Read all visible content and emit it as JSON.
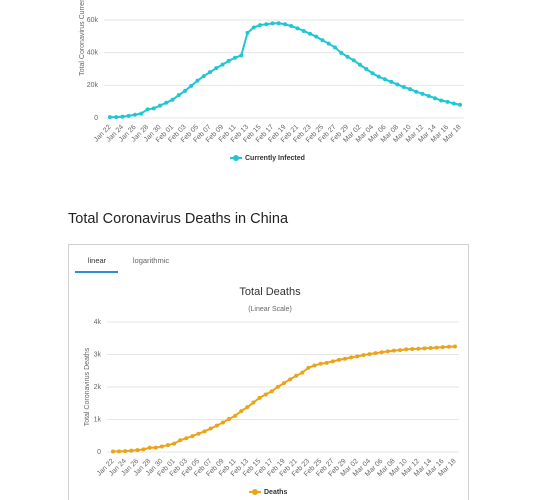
{
  "section_heading": "Total Coronavirus Deaths in China",
  "tabs": [
    "linear",
    "logarithmic"
  ],
  "chart_data": [
    {
      "type": "line",
      "y_label": "Total Coronavirus Currently Infected",
      "categories": [
        "Jan 22",
        null,
        "Jan 24",
        null,
        "Jan 26",
        null,
        "Jan 28",
        null,
        "Jan 30",
        null,
        "Feb 01",
        null,
        "Feb 03",
        null,
        "Feb 05",
        null,
        "Feb 07",
        null,
        "Feb 09",
        null,
        "Feb 11",
        null,
        "Feb 13",
        null,
        "Feb 15",
        null,
        "Feb 17",
        null,
        "Feb 19",
        null,
        "Feb 21",
        null,
        "Feb 23",
        null,
        "Feb 25",
        null,
        "Feb 27",
        null,
        "Feb 29",
        null,
        "Mar 02",
        null,
        "Mar 04",
        null,
        "Mar 06",
        null,
        "Mar 08",
        null,
        "Mar 10",
        null,
        "Mar 12",
        null,
        "Mar 14",
        null,
        "Mar 16",
        null,
        "Mar 18"
      ],
      "series": [
        {
          "name": "Currently Infected",
          "color": "#1fc7d4",
          "values": [
            510,
            570,
            850,
            1300,
            2000,
            2700,
            5300,
            5900,
            7600,
            9300,
            11200,
            14000,
            16600,
            19700,
            22900,
            25600,
            28100,
            30500,
            32700,
            35000,
            36900,
            38300,
            52100,
            55400,
            56900,
            57400,
            57900,
            58000,
            57400,
            56300,
            54900,
            53300,
            51600,
            49800,
            47600,
            45500,
            43200,
            39900,
            37500,
            35300,
            32600,
            30000,
            27400,
            25300,
            23700,
            22100,
            20500,
            19000,
            17700,
            16100,
            14800,
            13500,
            12100,
            10700,
            9900,
            8900,
            8100
          ]
        }
      ],
      "ylim": [
        0,
        60000
      ],
      "yticks": [
        0,
        {
          "value": 20000,
          "label": "20k"
        },
        {
          "value": 40000,
          "label": "40k"
        },
        {
          "value": 60000,
          "label": "60k"
        }
      ],
      "grid": true
    },
    {
      "type": "line",
      "title": "Total Deaths",
      "subtitle": "(Linear Scale)",
      "y_label": "Total Coronavirus Deaths",
      "categories": [
        "Jan 22",
        null,
        "Jan 24",
        null,
        "Jan 26",
        null,
        "Jan 28",
        null,
        "Jan 30",
        null,
        "Feb 01",
        null,
        "Feb 03",
        null,
        "Feb 05",
        null,
        "Feb 07",
        null,
        "Feb 09",
        null,
        "Feb 11",
        null,
        "Feb 13",
        null,
        "Feb 15",
        null,
        "Feb 17",
        null,
        "Feb 19",
        null,
        "Feb 21",
        null,
        "Feb 23",
        null,
        "Feb 25",
        null,
        "Feb 27",
        null,
        "Feb 29",
        null,
        "Mar 02",
        null,
        "Mar 04",
        null,
        "Mar 06",
        null,
        "Mar 08",
        null,
        "Mar 10",
        null,
        "Mar 12",
        null,
        "Mar 14",
        null,
        "Mar 16",
        null,
        "Mar 18"
      ],
      "series": [
        {
          "name": "Deaths",
          "color": "#eba418",
          "values": [
            17,
            18,
            26,
            42,
            56,
            82,
            131,
            133,
            171,
            213,
            259,
            361,
            425,
            490,
            562,
            636,
            722,
            811,
            908,
            1016,
            1113,
            1259,
            1380,
            1523,
            1665,
            1770,
            1868,
            2004,
            2118,
            2236,
            2345,
            2442,
            2592,
            2663,
            2715,
            2744,
            2788,
            2835,
            2870,
            2912,
            2943,
            2981,
            3012,
            3042,
            3070,
            3097,
            3119,
            3136,
            3158,
            3169,
            3176,
            3189,
            3199,
            3213,
            3226,
            3237,
            3245
          ]
        }
      ],
      "ylim": [
        0,
        4000
      ],
      "yticks": [
        0,
        {
          "value": 1000,
          "label": "1k"
        },
        {
          "value": 2000,
          "label": "2k"
        },
        {
          "value": 3000,
          "label": "3k"
        },
        {
          "value": 4000,
          "label": "4k"
        }
      ],
      "grid": true
    }
  ]
}
